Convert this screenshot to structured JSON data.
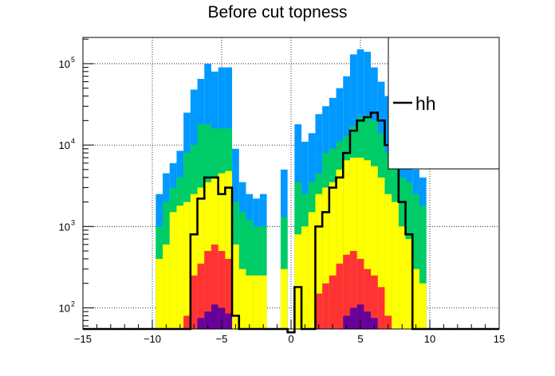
{
  "chart_data": {
    "type": "area",
    "title": "Before cut topness",
    "xlabel": "",
    "ylabel": "",
    "xlim": [
      -15,
      15
    ],
    "ylim": [
      55,
      210000
    ],
    "yscale": "log",
    "grid": true,
    "xticks": [
      -15,
      -10,
      -5,
      0,
      5,
      10,
      15
    ],
    "xtick_labels": [
      "−15",
      "−10",
      "−5",
      "0",
      "5",
      "10",
      "15"
    ],
    "yticks": [
      100,
      1000,
      10000,
      100000
    ],
    "ytick_labels": [
      "10",
      "10",
      "10",
      "10"
    ],
    "ytick_exponents": [
      "2",
      "3",
      "4",
      "5"
    ],
    "bin_width": 0.5,
    "x": [
      -9.5,
      -9,
      -8.5,
      -8,
      -7.5,
      -7,
      -6.5,
      -6,
      -5.5,
      -5,
      -4.5,
      -4,
      -3.5,
      -3,
      -2.5,
      -2,
      -1.5,
      -1,
      -0.5,
      0,
      0.5,
      1,
      1.5,
      2,
      2.5,
      3,
      3.5,
      4,
      4.5,
      5,
      5.5,
      6,
      6.5,
      7,
      7.5,
      8,
      8.5,
      9,
      9.5
    ],
    "series": [
      {
        "name": "",
        "color": "#0099ff",
        "values": [
          2500,
          4500,
          6000,
          8500,
          25000,
          48000,
          65000,
          100000,
          80000,
          90000,
          90000,
          9000,
          3500,
          2500,
          2200,
          2500,
          null,
          null,
          5000,
          null,
          18000,
          11000,
          14000,
          24000,
          30000,
          38000,
          50000,
          70000,
          130000,
          150000,
          140000,
          90000,
          60000,
          40000,
          30000,
          18000,
          9000,
          5000,
          4000
        ]
      },
      {
        "name": "",
        "color": "#00cc66",
        "values": [
          1000,
          2000,
          3000,
          4000,
          8000,
          10000,
          18000,
          18000,
          16000,
          16000,
          16000,
          2000,
          1500,
          1200,
          1000,
          1000,
          null,
          null,
          1300,
          null,
          3500,
          2500,
          3500,
          4500,
          8000,
          9000,
          11000,
          13000,
          17000,
          22000,
          23000,
          20000,
          14000,
          8000,
          6000,
          4000,
          3500,
          2500,
          1800
        ]
      },
      {
        "name": "",
        "color": "#ffff00",
        "values": [
          400,
          600,
          1500,
          1800,
          2000,
          2500,
          3000,
          3500,
          4000,
          4500,
          4800,
          600,
          300,
          250,
          250,
          250,
          null,
          null,
          300,
          null,
          800,
          1000,
          1500,
          2500,
          3000,
          3500,
          5000,
          6500,
          7000,
          7000,
          6500,
          5500,
          4000,
          2500,
          2000,
          1000,
          700,
          300,
          200
        ]
      },
      {
        "name": "",
        "color": "#ff3333",
        "values": [
          null,
          null,
          null,
          null,
          80,
          250,
          350,
          500,
          600,
          500,
          400,
          null,
          null,
          null,
          null,
          null,
          null,
          null,
          null,
          null,
          null,
          null,
          null,
          150,
          200,
          250,
          350,
          450,
          500,
          400,
          300,
          250,
          180,
          80,
          null,
          null,
          null,
          null,
          null
        ]
      },
      {
        "name": "",
        "color": "#660099",
        "values": [
          null,
          null,
          null,
          null,
          null,
          null,
          75,
          90,
          110,
          100,
          85,
          null,
          null,
          null,
          null,
          null,
          null,
          null,
          null,
          null,
          null,
          null,
          null,
          null,
          null,
          null,
          null,
          80,
          100,
          110,
          90,
          75,
          null,
          null,
          null,
          null,
          null,
          null,
          null
        ]
      },
      {
        "name": "hh",
        "color": "#000000",
        "line": true,
        "values": [
          null,
          null,
          null,
          null,
          null,
          800,
          2200,
          4000,
          4000,
          2500,
          3000,
          80,
          null,
          null,
          null,
          null,
          null,
          null,
          null,
          50,
          180,
          null,
          null,
          1000,
          1500,
          3000,
          4000,
          8000,
          15000,
          20000,
          22000,
          25000,
          20000,
          10000,
          8000,
          2000,
          800,
          null,
          null
        ]
      }
    ],
    "legend": {
      "position": "top-right",
      "entries": [
        "hh"
      ]
    }
  }
}
